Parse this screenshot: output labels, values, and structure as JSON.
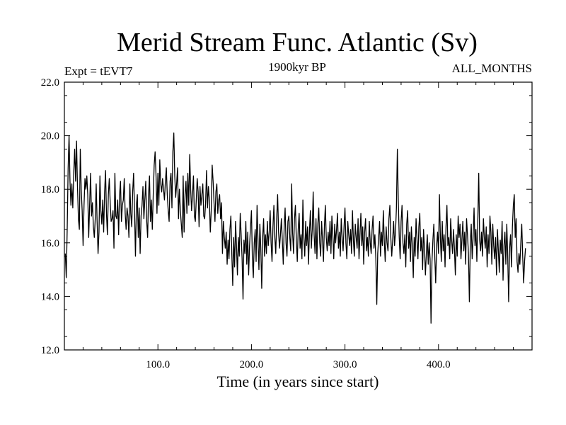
{
  "chart_data": {
    "type": "line",
    "title": "Merid Stream Func. Atlantic (Sv)",
    "subtitle_left": "Expt = tEVT7",
    "subtitle_center": "1900kyr BP",
    "subtitle_right": "ALL_MONTHS",
    "xlabel": "Time (in years since start)",
    "ylabel": "",
    "xlim": [
      0,
      500
    ],
    "ylim": [
      12.0,
      22.0
    ],
    "x_ticks": [
      100,
      200,
      300,
      400
    ],
    "x_tick_labels": [
      "100.0",
      "200.0",
      "300.0",
      "400.0"
    ],
    "y_ticks": [
      12,
      14,
      16,
      18,
      20,
      22
    ],
    "y_tick_labels": [
      "12.0",
      "14.0",
      "16.0",
      "18.0",
      "20.0",
      "22.0"
    ],
    "grid": false,
    "series": [
      {
        "name": "Merid Stream Func. Atlantic",
        "color": "#000000",
        "x_start": 1,
        "x_step": 1,
        "values": [
          15.6,
          14.7,
          16.5,
          18.8,
          20.0,
          18.3,
          17.4,
          18.2,
          17.3,
          18.6,
          19.5,
          18.3,
          19.8,
          18.1,
          16.9,
          16.5,
          19.5,
          18.0,
          17.2,
          15.9,
          17.4,
          18.4,
          18.0,
          18.5,
          17.8,
          16.2,
          17.4,
          18.6,
          17.0,
          17.5,
          16.6,
          16.2,
          16.9,
          18.2,
          16.8,
          15.6,
          16.4,
          18.5,
          17.2,
          16.7,
          17.6,
          16.4,
          17.9,
          18.7,
          17.1,
          16.3,
          17.8,
          18.4,
          17.5,
          16.8,
          16.9,
          17.2,
          15.8,
          18.6,
          17.0,
          16.9,
          17.6,
          16.3,
          17.8,
          18.3,
          16.8,
          17.4,
          17.6,
          18.4,
          17.1,
          16.5,
          17.3,
          17.0,
          16.2,
          18.2,
          17.1,
          16.6,
          17.9,
          18.6,
          17.2,
          15.5,
          17.4,
          17.8,
          16.2,
          17.3,
          15.6,
          17.0,
          17.4,
          18.1,
          16.9,
          17.6,
          18.3,
          16.8,
          16.2,
          17.8,
          18.5,
          16.8,
          17.6,
          16.5,
          17.8,
          18.9,
          19.4,
          18.5,
          17.1,
          18.6,
          17.4,
          19.1,
          18.2,
          17.9,
          18.4,
          18.0,
          17.6,
          18.3,
          18.8,
          17.8,
          17.2,
          16.8,
          18.3,
          18.6,
          17.3,
          19.4,
          20.1,
          18.5,
          17.7,
          18.2,
          18.8,
          16.9,
          18.0,
          17.2,
          16.7,
          16.2,
          18.5,
          16.4,
          17.8,
          18.3,
          17.1,
          18.6,
          17.4,
          19.3,
          18.0,
          17.2,
          17.8,
          18.5,
          17.0,
          16.8,
          17.6,
          18.4,
          17.9,
          16.6,
          18.1,
          17.4,
          17.8,
          18.2,
          17.0,
          16.9,
          17.5,
          18.7,
          17.3,
          18.1,
          17.6,
          16.4,
          17.2,
          18.9,
          18.3,
          17.5,
          16.8,
          17.9,
          18.2,
          17.1,
          17.6,
          17.8,
          16.9,
          17.5,
          15.6,
          16.8,
          16.2,
          15.8,
          16.4,
          15.2,
          16.1,
          15.4,
          16.5,
          17.0,
          15.6,
          14.4,
          16.2,
          15.1,
          16.8,
          15.9,
          14.8,
          16.2,
          15.5,
          17.1,
          16.3,
          15.4,
          13.9,
          16.1,
          15.6,
          16.8,
          15.2,
          16.4,
          14.8,
          15.9,
          16.6,
          17.2,
          15.4,
          14.7,
          16.0,
          16.5,
          15.3,
          17.4,
          16.1,
          15.0,
          16.7,
          15.8,
          14.3,
          16.2,
          16.9,
          15.5,
          16.3,
          15.6,
          16.8,
          15.9,
          16.4,
          17.2,
          16.0,
          15.3,
          16.6,
          17.4,
          16.2,
          15.6,
          16.9,
          17.8,
          16.4,
          15.8,
          16.3,
          16.9,
          16.1,
          15.2,
          16.6,
          17.3,
          16.0,
          15.5,
          16.8,
          17.0,
          16.2,
          15.7,
          18.2,
          16.4,
          15.6,
          16.9,
          17.4,
          16.1,
          15.3,
          16.5,
          17.1,
          15.8,
          16.3,
          15.4,
          17.6,
          16.2,
          15.5,
          16.8,
          15.9,
          16.6,
          15.2,
          16.4,
          17.2,
          15.8,
          16.5,
          17.9,
          16.3,
          15.6,
          16.9,
          15.4,
          16.7,
          17.3,
          16.0,
          15.5,
          16.8,
          16.1,
          15.3,
          16.6,
          17.4,
          16.2,
          15.7,
          16.4,
          15.9,
          16.8,
          15.6,
          17.0,
          16.3,
          15.4,
          16.7,
          16.0,
          16.5,
          17.1,
          15.8,
          16.4,
          15.5,
          16.9,
          16.2,
          15.7,
          16.6,
          17.3,
          16.0,
          15.4,
          16.8,
          16.3,
          15.9,
          16.5,
          15.6,
          17.2,
          16.1,
          15.5,
          16.7,
          16.2,
          15.8,
          16.9,
          15.4,
          16.3,
          17.1,
          15.9,
          16.6,
          15.2,
          16.4,
          16.9,
          15.7,
          16.2,
          15.5,
          16.8,
          16.0,
          15.6,
          16.5,
          17.0,
          15.8,
          16.3,
          15.4,
          13.7,
          15.6,
          16.2,
          16.8,
          15.5,
          16.4,
          15.9,
          17.2,
          16.1,
          15.3,
          16.6,
          16.0,
          15.7,
          16.9,
          17.4,
          16.2,
          15.5,
          16.1,
          16.8,
          15.9,
          16.4,
          17.3,
          19.5,
          17.6,
          16.2,
          15.4,
          16.8,
          17.4,
          16.0,
          15.6,
          16.3,
          15.1,
          16.7,
          17.2,
          15.8,
          16.4,
          15.3,
          16.6,
          15.9,
          14.7,
          16.2,
          15.5,
          16.9,
          16.1,
          15.4,
          16.6,
          17.1,
          15.7,
          16.2,
          15.0,
          16.5,
          15.8,
          14.8,
          15.6,
          16.3,
          15.2,
          16.0,
          15.4,
          13.0,
          15.3,
          16.1,
          16.7,
          15.5,
          14.5,
          15.9,
          16.4,
          15.6,
          17.8,
          16.2,
          15.3,
          16.8,
          15.7,
          16.3,
          15.1,
          16.6,
          17.4,
          15.9,
          16.2,
          15.4,
          16.9,
          16.1,
          15.6,
          16.5,
          15.8,
          14.8,
          16.3,
          15.5,
          17.0,
          16.2,
          16.7,
          15.4,
          16.1,
          16.8,
          15.7,
          16.4,
          15.2,
          16.9,
          16.3,
          15.6,
          13.8,
          16.0,
          16.7,
          15.4,
          16.2,
          17.3,
          15.9,
          16.5,
          15.3,
          16.8,
          18.6,
          16.1,
          15.7,
          16.4,
          15.5,
          16.9,
          16.2,
          15.8,
          16.6,
          15.1,
          16.3,
          15.6,
          17.0,
          16.4,
          15.2,
          16.7,
          15.9,
          15.4,
          16.2,
          14.8,
          16.5,
          15.7,
          14.9,
          16.1,
          15.6,
          16.8,
          14.6,
          15.9,
          16.4,
          15.2,
          16.7,
          15.5,
          13.8,
          15.8,
          16.3,
          15.1,
          16.6,
          17.4,
          17.8,
          16.2,
          16.9,
          15.3,
          14.9,
          15.6,
          15.2,
          16.0,
          16.7,
          15.5,
          14.5,
          15.3,
          15.8
        ]
      }
    ]
  }
}
